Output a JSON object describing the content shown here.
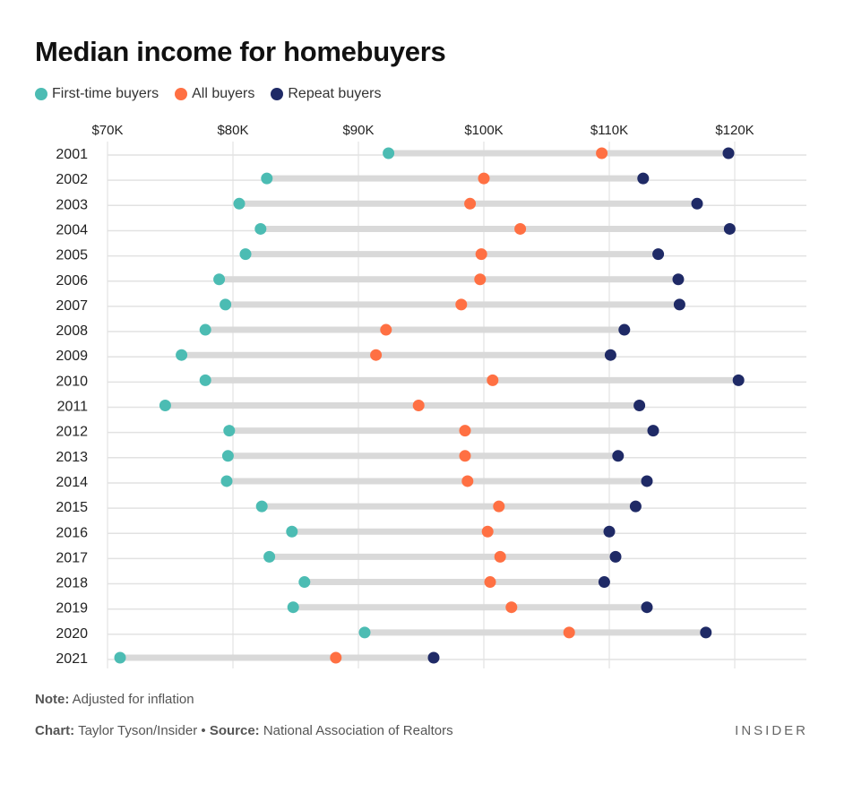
{
  "title": "Median income for homebuyers",
  "legend": [
    {
      "label": "First-time buyers",
      "color": "#4cbcb3"
    },
    {
      "label": "All buyers",
      "color": "#ff7043"
    },
    {
      "label": "Repeat buyers",
      "color": "#1f2a66"
    }
  ],
  "note": {
    "label": "Note:",
    "text": "Adjusted for inflation"
  },
  "credit": {
    "chart_label": "Chart:",
    "chart_text": "Taylor Tyson/Insider",
    "separator": "•",
    "source_label": "Source:",
    "source_text": "National Association of Realtors"
  },
  "brand": "INSIDER",
  "chart_data": {
    "type": "scatter",
    "orientation": "horizontal-dumbbell",
    "x_ticks": [
      70000,
      80000,
      90000,
      100000,
      110000,
      120000
    ],
    "x_tick_labels": [
      "$70K",
      "$80K",
      "$90K",
      "$100K",
      "$110K",
      "$120K"
    ],
    "xlim": [
      70000,
      126000
    ],
    "categories": [
      "2001",
      "2002",
      "2003",
      "2004",
      "2005",
      "2006",
      "2007",
      "2008",
      "2009",
      "2010",
      "2011",
      "2012",
      "2013",
      "2014",
      "2015",
      "2016",
      "2017",
      "2018",
      "2019",
      "2020",
      "2021"
    ],
    "series": [
      {
        "name": "First-time buyers",
        "color": "#4cbcb3",
        "values": [
          92400,
          82700,
          80500,
          82200,
          81000,
          78900,
          79400,
          77800,
          75900,
          77800,
          74600,
          79700,
          79600,
          79500,
          82300,
          84700,
          82900,
          85700,
          84800,
          90500,
          71000
        ]
      },
      {
        "name": "All buyers",
        "color": "#ff7043",
        "values": [
          109400,
          100000,
          98900,
          102900,
          99800,
          99700,
          98200,
          92200,
          91400,
          100700,
          94800,
          98500,
          98500,
          98700,
          101200,
          100300,
          101300,
          100500,
          102200,
          106800,
          88200
        ]
      },
      {
        "name": "Repeat buyers",
        "color": "#1f2a66",
        "values": [
          119500,
          112700,
          117000,
          119600,
          113900,
          115500,
          115600,
          111200,
          110100,
          120300,
          112400,
          113500,
          110700,
          113000,
          112100,
          110000,
          110500,
          109600,
          113000,
          117700,
          96000
        ]
      }
    ],
    "grid": true,
    "legend_position": "top-left"
  }
}
